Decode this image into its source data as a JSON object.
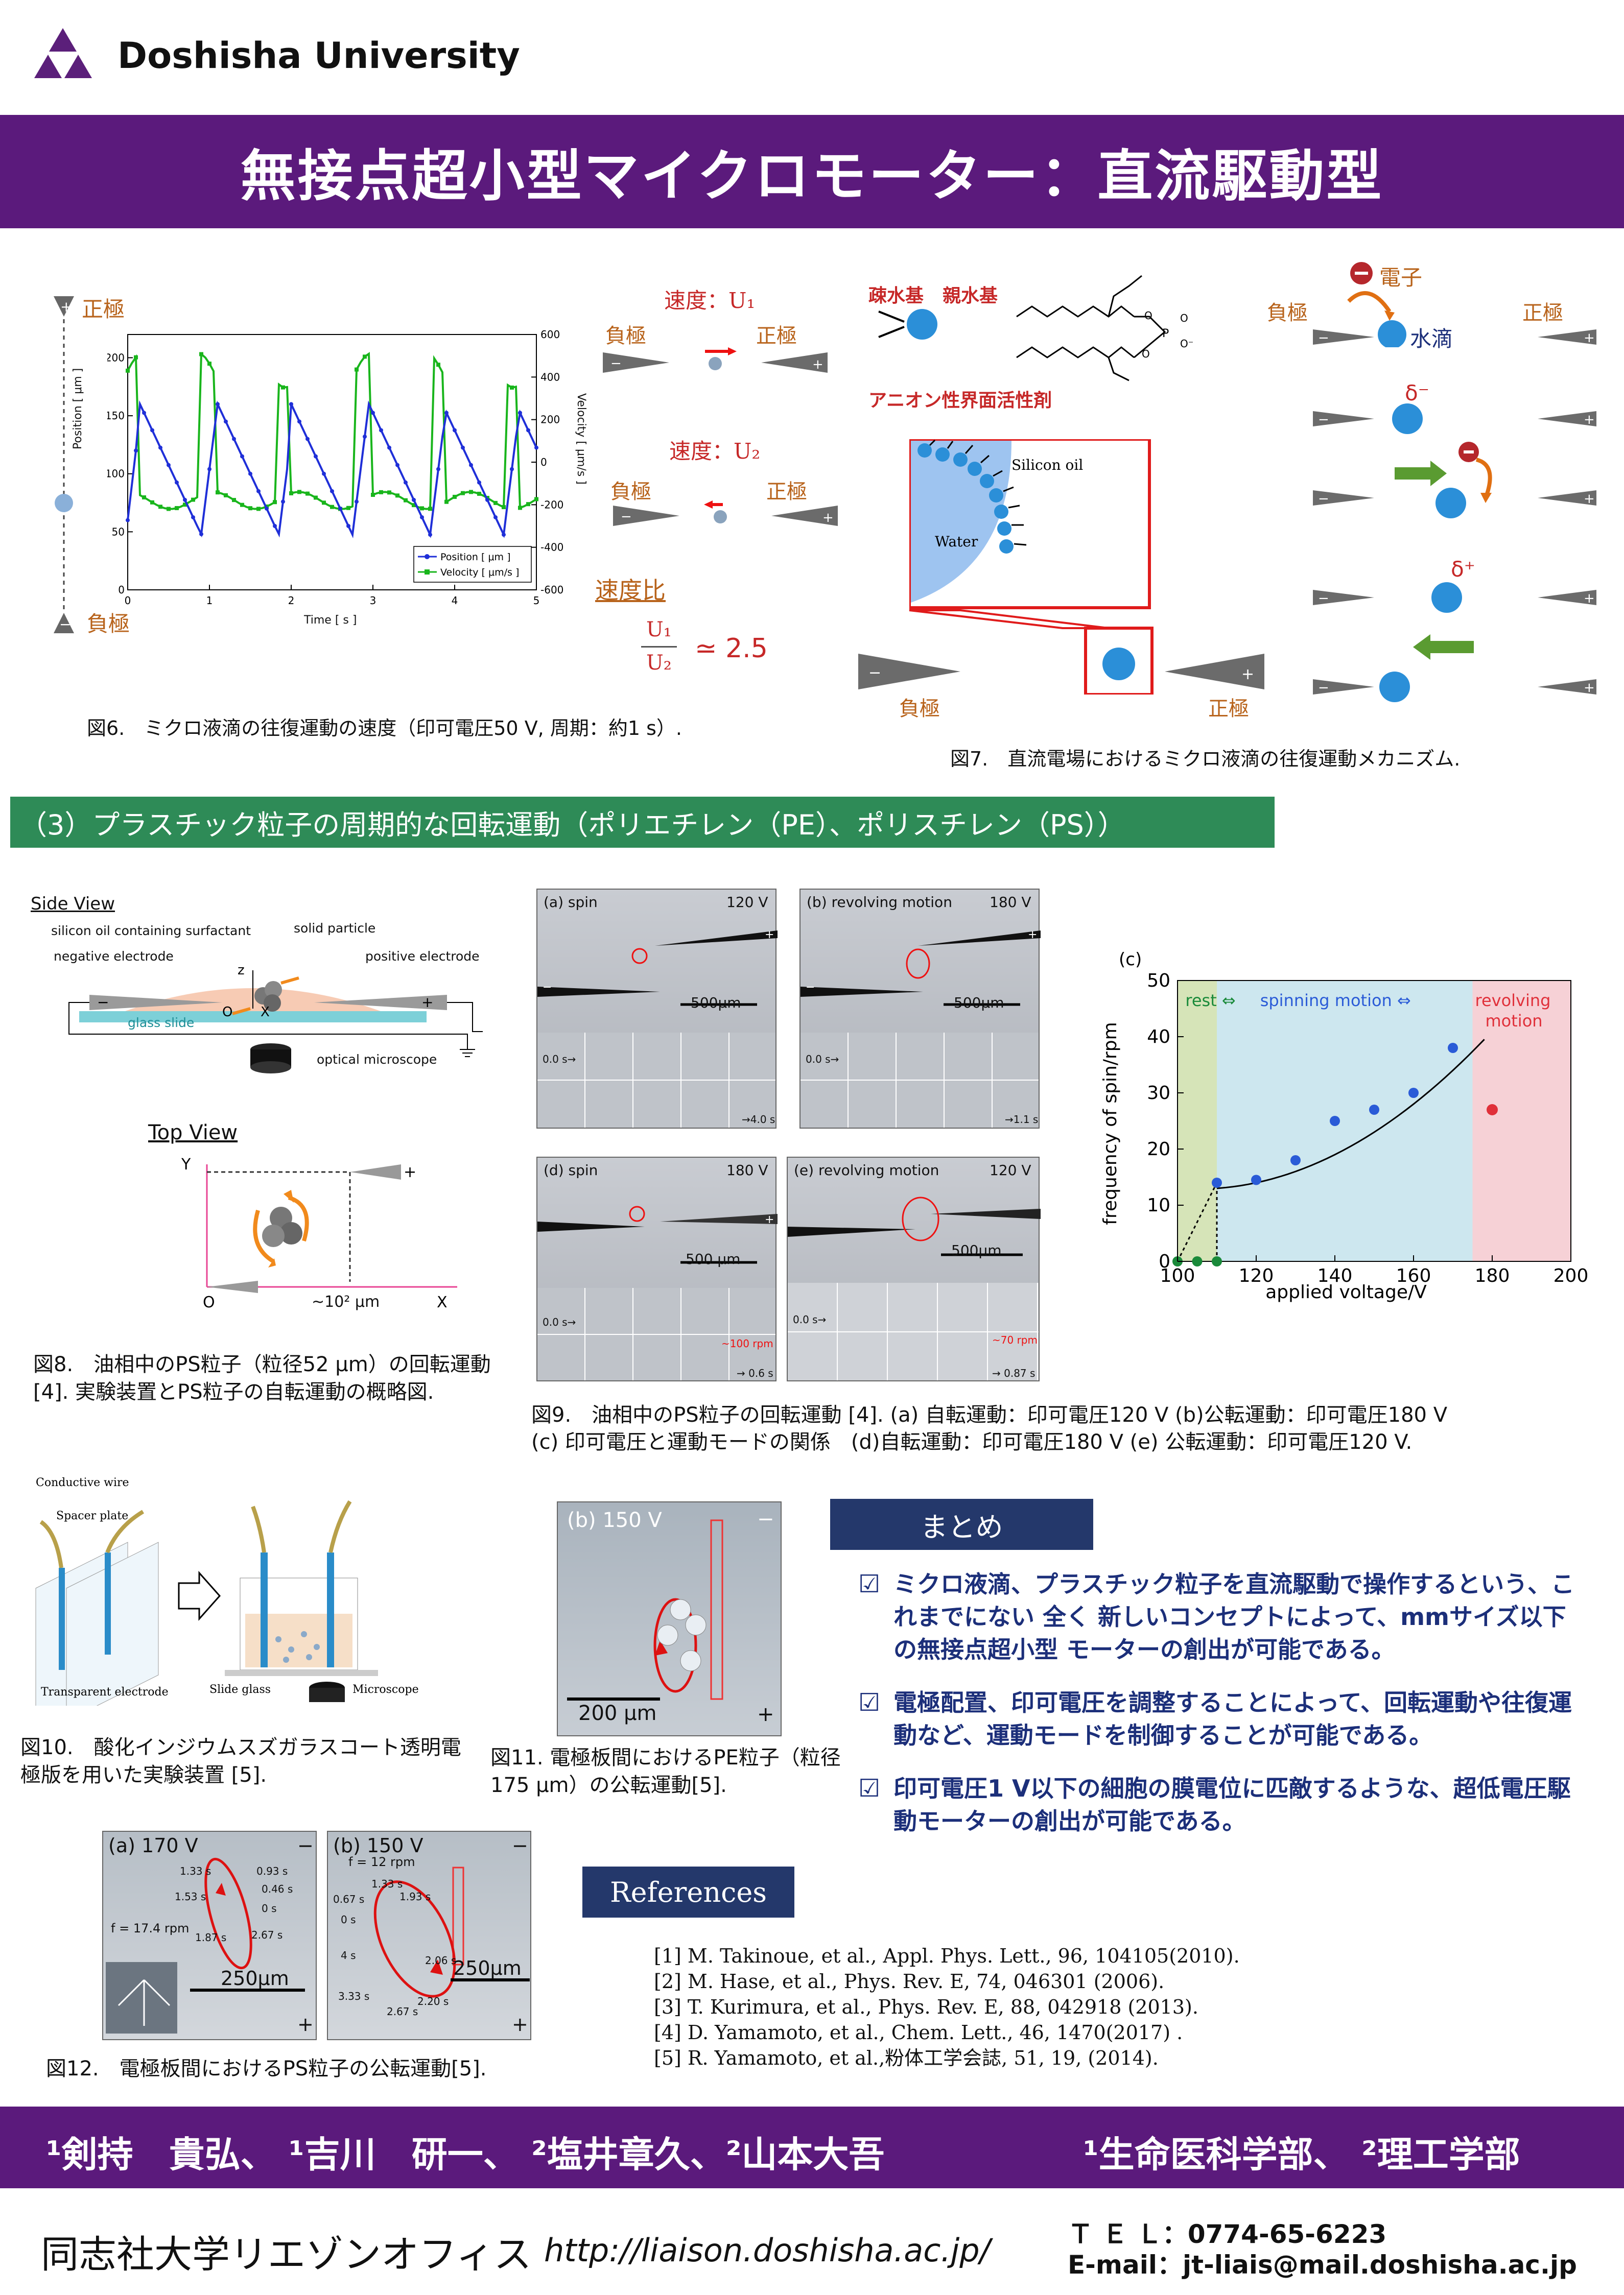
{
  "header": {
    "university": "Doshisha University",
    "title": "無接点超小型マイクロモーター：直流駆動型"
  },
  "fig6": {
    "pos_label": "正極",
    "neg_label": "負極",
    "yl_axis": "Position [ μm ]",
    "yr_axis": "Velocity [ μm/s ]",
    "x_axis": "Time [ s ]",
    "legend": [
      "Position [ μm ]",
      "Velocity [ μm/s ]"
    ],
    "speed1": "速度：U₁",
    "speed2": "速度：U₂",
    "neg": "負極",
    "pos": "正極",
    "ratio_label": "速度比",
    "ratio_num": "U₁",
    "ratio_den": "U₂",
    "ratio_val": "≃ 2.5",
    "caption": "図6.　ミクロ液滴の往復運動の速度（印可電圧50 V, 周期：約1 s）."
  },
  "fig7": {
    "hydrophobic": "疎水基",
    "hydrophilic": "親水基",
    "surfactant": "アニオン性界面活性剤",
    "silicon_oil": "Silicon oil",
    "water": "Water",
    "neg": "負極",
    "pos": "正極",
    "electron": "電子",
    "waterdrop": "水滴",
    "delta_minus": "δ⁻",
    "delta_plus": "δ⁺",
    "caption": "図7.　直流電場におけるミクロ液滴の往復運動メカニズム."
  },
  "section3": {
    "title": "（3）プラスチック粒子の周期的な回転運動（ポリエチレン（PE）、ポリスチレン（PS））"
  },
  "fig8": {
    "side_view": "Side View",
    "surfactant": "silicon oil containing surfactant",
    "solid": "solid particle",
    "negative": "negative electrode",
    "positive": "positive electrode",
    "glass": "glass slide",
    "microscope": "optical microscope",
    "top_view": "Top View",
    "dist": "~10² μm",
    "caption": "図8.　油相中のPS粒子（粒径52 μm）の回転運動 [4]. 実験装置とPS粒子の自転運動の概略図."
  },
  "fig9": {
    "panels": [
      {
        "tag": "(a) spin",
        "volt": "120 V",
        "scale": "500μm",
        "t0": "0.0 s→",
        "t1": "→4.0 s"
      },
      {
        "tag": "(b) revolving motion",
        "volt": "180 V",
        "scale": "500μm",
        "t0": "0.0 s→",
        "t1": "→1.1 s"
      },
      {
        "tag": "(d) spin",
        "volt": "180 V",
        "scale": "500 μm",
        "t0": "0.0 s→",
        "t1": "→ 0.6 s"
      },
      {
        "tag": "(e) revolving motion",
        "volt": "120 V",
        "scale": "500μm",
        "t0": "0.0 s→",
        "t1": "→ 0.87 s"
      }
    ],
    "rpm100": "~100 rpm",
    "rpm70": "~70 rpm",
    "caption1": "図9.　油相中のPS粒子の回転運動 [4].  (a) 自転運動：印可電圧120 V  (b)公転運動：印可電圧180 V",
    "caption2": "(c) 印可電圧と運動モードの関係　(d)自転運動：印可電圧180 V  (e) 公転運動：印可電圧120 V."
  },
  "chart_data": {
    "type": "scatter",
    "panel_tag": "(c)",
    "xlabel": "applied voltage/V",
    "ylabel": "frequency of spin/rpm",
    "xlim": [
      100,
      200
    ],
    "ylim": [
      0,
      50
    ],
    "xticks": [
      100,
      120,
      140,
      160,
      180,
      200
    ],
    "yticks": [
      0,
      10,
      20,
      30,
      40,
      50
    ],
    "regions": [
      {
        "label": "rest ⇔",
        "from": 100,
        "to": 110,
        "color": "#d6e4b8"
      },
      {
        "label": "spinning motion ⇔",
        "from": 110,
        "to": 175,
        "color": "#cde7ef"
      },
      {
        "label": "revolving motion",
        "from": 175,
        "to": 200,
        "color": "#f6d1d6"
      }
    ],
    "rest_points": [
      [
        100,
        0
      ],
      [
        105,
        0
      ],
      [
        110,
        0
      ]
    ],
    "spin_points": [
      [
        110,
        14
      ],
      [
        120,
        14.5
      ],
      [
        130,
        18
      ],
      [
        140,
        25
      ],
      [
        150,
        27
      ],
      [
        160,
        30
      ],
      [
        170,
        38
      ]
    ],
    "revolve_points": [
      [
        180,
        27
      ]
    ],
    "colors": {
      "rest": "#1a8a3a",
      "spin": "#2a5bd7",
      "revolve": "#e0303a"
    }
  },
  "fig10": {
    "conductive": "Conductive wire",
    "spacer": "Spacer plate",
    "transparent": "Transparent electrode",
    "slide": "Slide glass",
    "microscope": "Microscope",
    "caption": "図10.　酸化インジウムスズガラスコート透明電極版を用いた実験装置 [5]."
  },
  "fig11": {
    "tag": "(b) 150 V",
    "scale": "200 μm",
    "caption": "図11. 電極板間におけるPE粒子（粒径175 μm）の公転運動[5]."
  },
  "fig12": {
    "a_tag": "(a) 170 V",
    "a_freq": "f = 17.4 rpm",
    "a_times": [
      "1.33 s",
      "0.93 s",
      "0.46 s",
      "1.53 s",
      "0 s",
      "1.87 s",
      "2.67 s"
    ],
    "a_scale": "250μm",
    "b_tag": "(b) 150 V",
    "b_freq": "f = 12 rpm",
    "b_times": [
      "1.33 s",
      "0.67 s",
      "1.93 s",
      "0 s",
      "4 s",
      "2.06 s",
      "3.33 s",
      "2.67 s",
      "2.20 s"
    ],
    "b_scale": "250μm",
    "caption": "図12.　電極板間におけるPS粒子の公転運動[5]."
  },
  "summary": {
    "title": "まとめ",
    "items": [
      "ミクロ液滴、プラスチック粒子を直流駆動で操作するという、これまでにない 全く 新しいコンセプトによって、mmサイズ以下の無接点超小型 モーターの創出が可能である。",
      "電極配置、印可電圧を調整することによって、回転運動や往復運動など、運動モードを制御することが可能である。",
      "印可電圧1 V以下の細胞の膜電位に匹敵するような、超低電圧駆動モーターの創出が可能である。"
    ]
  },
  "references": {
    "title": "References",
    "items": [
      "[1] M. Takinoue, et al., Appl. Phys. Lett., 96, 104105(2010).",
      "[2] M. Hase, et al., Phys. Rev. E, 74, 046301 (2006).",
      "[3] T. Kurimura, et al., Phys. Rev. E, 88, 042918 (2013).",
      "[4] D. Yamamoto, et al., Chem. Lett., 46, 1470(2017) .",
      "[5] R. Yamamoto, et al.,粉体工学会誌, 51, 19, (2014)."
    ]
  },
  "authors": {
    "line": "¹剣持　貴弘、 ¹吉川　研一、 ²塩井章久、²山本大吾",
    "affil": "¹生命医科学部、 ²理工学部"
  },
  "footer": {
    "office": "同志社大学リエゾンオフィス",
    "url": "http://liaison.doshisha.ac.jp/",
    "tel": "Ｔ Ｅ Ｌ：0774-65-6223",
    "email": "E-mail：jt-liais@mail.doshisha.ac.jp"
  },
  "fig6_chart": {
    "yl_ticks": [
      "0",
      "50",
      "100",
      "150",
      "200"
    ],
    "yr_ticks": [
      "-600",
      "-400",
      "-200",
      "0",
      "200",
      "400",
      "600"
    ],
    "x_ticks": [
      "0",
      "1",
      "2",
      "3",
      "4",
      "5"
    ]
  }
}
